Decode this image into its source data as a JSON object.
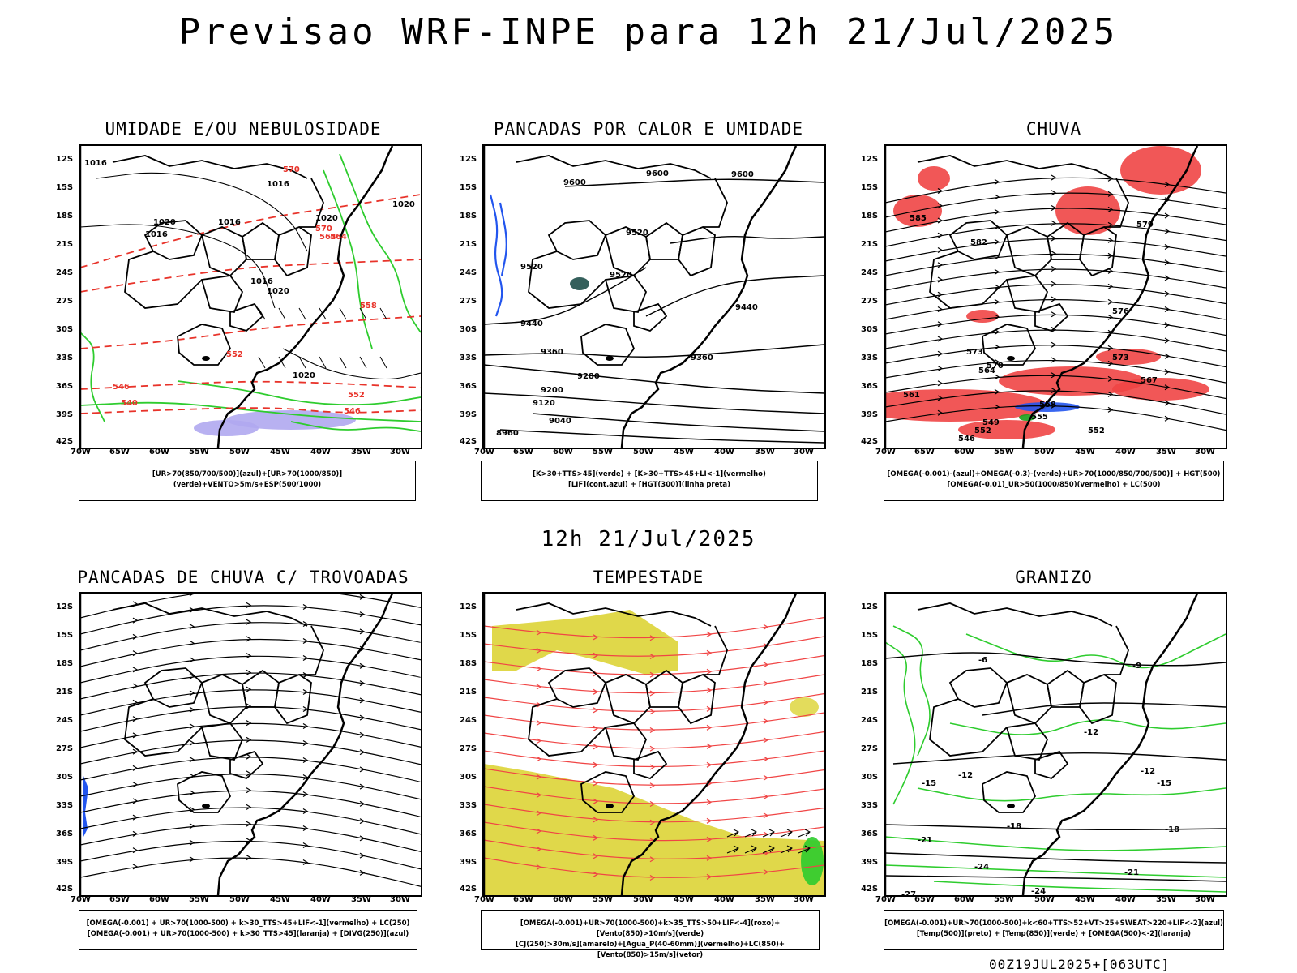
{
  "header": {
    "title": "Previsao WRF-INPE  para 12h 21/Jul/2025",
    "mid_date": "12h 21/Jul/2025",
    "run_info": "00Z19JUL2025+[063UTC]"
  },
  "axes": {
    "lat_labels": [
      "12S",
      "15S",
      "18S",
      "21S",
      "24S",
      "27S",
      "30S",
      "33S",
      "36S",
      "39S",
      "42S"
    ],
    "lon_labels": [
      "70W",
      "65W",
      "60W",
      "55W",
      "50W",
      "45W",
      "40W",
      "35W",
      "30W"
    ]
  },
  "panels": [
    {
      "id": "umidade",
      "title": "UMIDADE E/OU NEBULOSIDADE",
      "legend": [
        "[UR>70(850/700/500)](azul)+[UR>70(1000/850)](verde)+VENTO>5m/s+ESP(500/1000)"
      ],
      "contour_labels": [
        "1016",
        "1016",
        "1016",
        "1016",
        "1016",
        "1020",
        "1020",
        "1020",
        "1020",
        "1020",
        "570",
        "570",
        "564",
        "558",
        "552",
        "546",
        "540",
        "546",
        "552",
        "564"
      ]
    },
    {
      "id": "pancadas-calor",
      "title": "PANCADAS POR CALOR E UMIDADE",
      "legend": [
        "[K>30+TTS>45](verde) + [K>30+TTS>45+LI<-1](vermelho)",
        "[LIF](cont.azul) + [HGT(300)](linha preta)"
      ],
      "contour_labels": [
        "9600",
        "9600",
        "9600",
        "9520",
        "9520",
        "9520",
        "9440",
        "9440",
        "9360",
        "9360",
        "9280",
        "9200",
        "9120",
        "9040",
        "8960"
      ]
    },
    {
      "id": "chuva",
      "title": "CHUVA",
      "legend": [
        "[OMEGA(-0.001)-(azul)+OMEGA(-0.3)-(verde)+UR>70(1000/850/700/500)] + HGT(500)",
        "[OMEGA(-0.01)_UR>50(1000/850)(vermelho) + LC(500)"
      ],
      "contour_labels": [
        "585",
        "582",
        "579",
        "576",
        "573",
        "573",
        "570",
        "567",
        "564",
        "561",
        "558",
        "555",
        "552",
        "552",
        "549",
        "546"
      ]
    },
    {
      "id": "pancadas-trovoadas",
      "title": "PANCADAS DE CHUVA C/ TROVOADAS",
      "legend": [
        "[OMEGA(-0.001) + UR>70(1000-500) + k>30_TTS>45+LIF<-1](vermelho) + LC(250)",
        "[OMEGA(-0.001) + UR>70(1000-500) + k>30_TTS>45](laranja) + [DIVG(250)](azul)"
      ],
      "contour_labels": []
    },
    {
      "id": "tempestade",
      "title": "TEMPESTADE",
      "legend": [
        "[OMEGA(-0.001)+UR>70(1000-500)+k>35_TTS>50+LIF<-4](roxo)+[Vento(850)>10m/s](verde)",
        "[CJ(250)>30m/s](amarelo)+[Agua_P(40-60mm)](vermelho)+LC(850)+[Vento(850)>15m/s](vetor)"
      ],
      "contour_labels": []
    },
    {
      "id": "granizo",
      "title": "GRANIZO",
      "legend": [
        "[OMEGA(-0.001)+UR>70(1000-500)+k<60+TTS>52+VT>25+SWEAT>220+LIF<-2](azul)",
        "[Temp(500)](preto) + [Temp(850)](verde) + [OMEGA(500)<-2](laranja)"
      ],
      "contour_labels": [
        "-6",
        "-9",
        "-12",
        "-12",
        "-12",
        "-15",
        "-15",
        "-18",
        "-18",
        "-21",
        "-21",
        "-24",
        "-24",
        "-27"
      ]
    }
  ]
}
